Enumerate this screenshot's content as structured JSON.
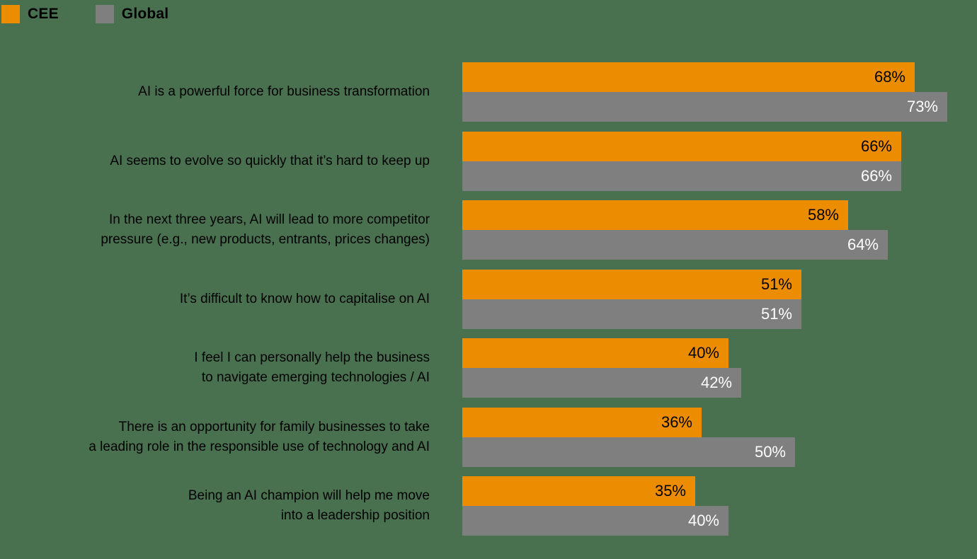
{
  "legend": {
    "cee": {
      "label": "CEE",
      "color": "#EC8C00"
    },
    "global": {
      "label": "Global",
      "color": "#7F7F7F"
    }
  },
  "chart_data": {
    "type": "bar",
    "orientation": "horizontal",
    "background": "#497150",
    "value_suffix": "%",
    "xlim": [
      0,
      100
    ],
    "legend_position": "top-left",
    "grid": false,
    "categories": [
      "AI is a powerful force for business transformation",
      "AI seems to evolve so quickly that it’s hard to keep up",
      "In the next three years, AI will lead to more competitor pressure (e.g., new products, entrants, prices changes)",
      "It’s difficult to know how to capitalise on AI",
      "I feel I can personally help the business to navigate emerging technologies / AI",
      "There is an opportunity for family businesses to take a leading role in the responsible use of technology and AI",
      "Being an AI champion will help me move into a leadership position"
    ],
    "category_lines": [
      [
        "AI is a powerful force for business transformation"
      ],
      [
        "AI seems to evolve so quickly that it’s hard to keep up"
      ],
      [
        "In the next three years, AI will lead to more competitor",
        "pressure (e.g., new products, entrants, prices changes)"
      ],
      [
        "It’s difficult to know how to capitalise on AI"
      ],
      [
        "I feel I can personally help the business",
        "to navigate emerging technologies / AI"
      ],
      [
        "There is an opportunity for family businesses to take",
        "a leading role in the responsible use of technology and AI"
      ],
      [
        "Being an AI champion will help me move",
        "into a leadership position"
      ]
    ],
    "series": [
      {
        "name": "CEE",
        "color": "#EC8C00",
        "label_color": "#000000",
        "values": [
          68,
          66,
          58,
          51,
          40,
          36,
          35
        ]
      },
      {
        "name": "Global",
        "color": "#7F7F7F",
        "label_color": "#FFFFFF",
        "values": [
          73,
          66,
          64,
          51,
          42,
          50,
          40
        ]
      }
    ]
  }
}
